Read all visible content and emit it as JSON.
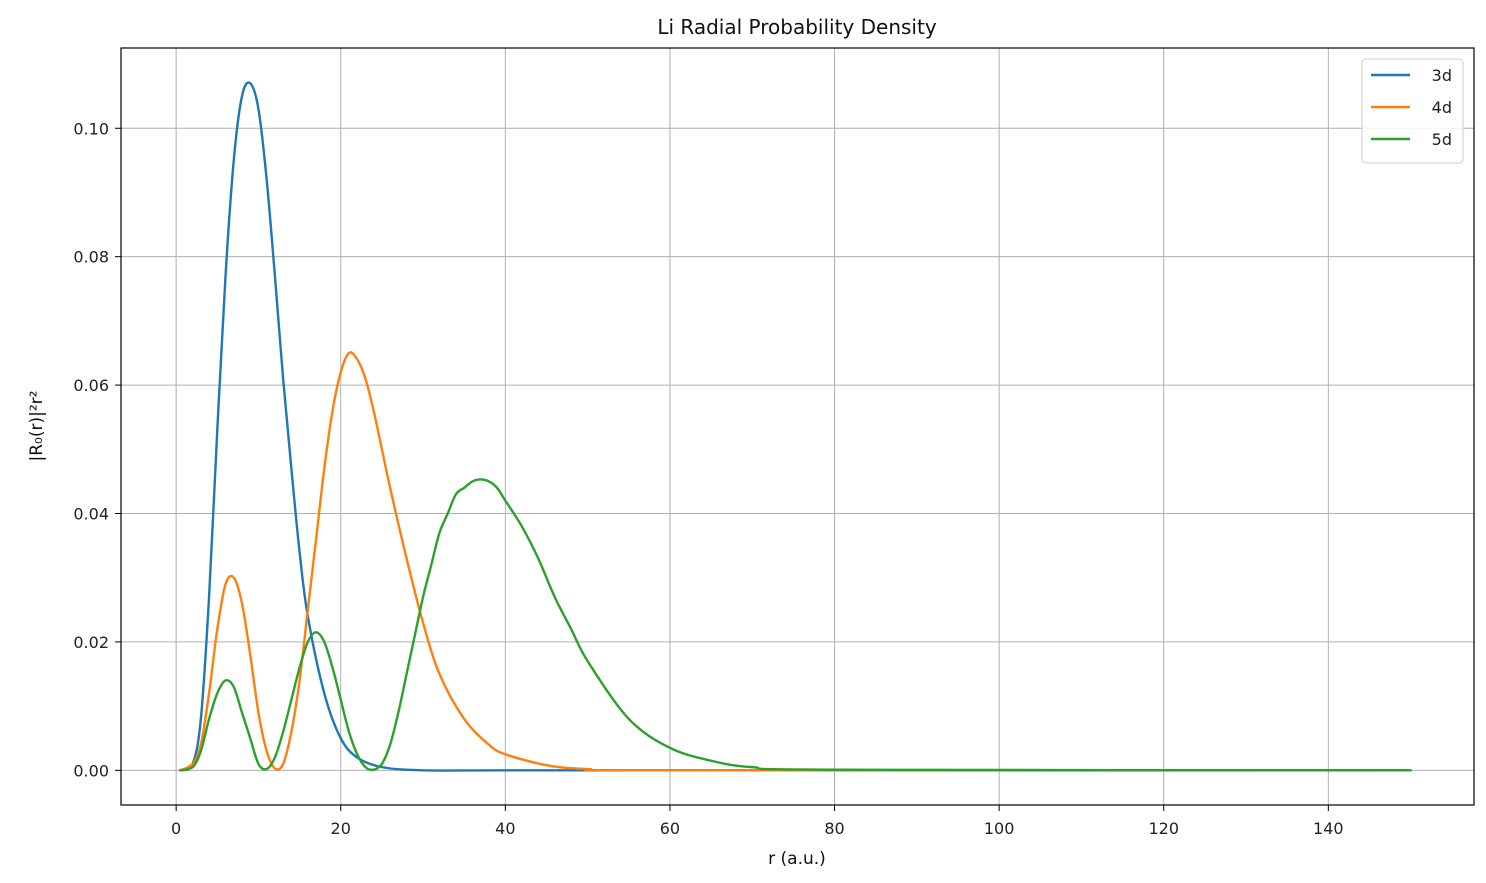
{
  "chart_data": {
    "type": "line",
    "title": "Li Radial Probability Density",
    "xlabel": "r (a.u.)",
    "ylabel": "|R₀(r)|²r²",
    "xlim": [
      -6.7,
      157.7
    ],
    "ylim": [
      -0.0054,
      0.1125
    ],
    "x_ticks": [
      0,
      20,
      40,
      60,
      80,
      100,
      120,
      140
    ],
    "x_tick_labels": [
      "0",
      "20",
      "40",
      "60",
      "80",
      "100",
      "120",
      "140"
    ],
    "y_ticks": [
      0.0,
      0.02,
      0.04,
      0.06,
      0.08,
      0.1
    ],
    "y_tick_labels": [
      "0.00",
      "0.02",
      "0.04",
      "0.06",
      "0.08",
      "0.10"
    ],
    "grid": true,
    "legend_position": "top-right",
    "series": [
      {
        "name": "3d",
        "color": "#1f77b4",
        "x": [
          0.5,
          2,
          3,
          4,
          5,
          6,
          7,
          8,
          9,
          10,
          11,
          12,
          13,
          14,
          15,
          16,
          18,
          20,
          22,
          25,
          30,
          40,
          60,
          150
        ],
        "y": [
          0.0,
          0.001,
          0.008,
          0.027,
          0.053,
          0.077,
          0.095,
          0.105,
          0.107,
          0.103,
          0.092,
          0.077,
          0.061,
          0.047,
          0.034,
          0.024,
          0.012,
          0.005,
          0.002,
          0.0005,
          0.0,
          0.0,
          0.0,
          0.0
        ]
      },
      {
        "name": "4d",
        "color": "#ff7f0e",
        "x": [
          0.5,
          2,
          3,
          4,
          5,
          6,
          7,
          8,
          9,
          10,
          11,
          12,
          13,
          14,
          15,
          16,
          17,
          18,
          19,
          20,
          21,
          22,
          23,
          24,
          25,
          26,
          28,
          30,
          32,
          35,
          38,
          40,
          45,
          50,
          60,
          150
        ],
        "y": [
          0.0,
          0.001,
          0.004,
          0.012,
          0.022,
          0.029,
          0.03,
          0.026,
          0.018,
          0.009,
          0.003,
          0.0003,
          0.001,
          0.006,
          0.014,
          0.025,
          0.036,
          0.047,
          0.056,
          0.062,
          0.065,
          0.064,
          0.061,
          0.056,
          0.05,
          0.044,
          0.033,
          0.023,
          0.015,
          0.008,
          0.004,
          0.0025,
          0.0008,
          0.0002,
          0.0,
          0.0
        ]
      },
      {
        "name": "5d",
        "color": "#2ca02c",
        "x": [
          0.5,
          2,
          3,
          4,
          5,
          6,
          7,
          8,
          9,
          10,
          11,
          12,
          13,
          14,
          15,
          16,
          17,
          18,
          19,
          20,
          21,
          22,
          23,
          24,
          25,
          26,
          27,
          28,
          29,
          30,
          31,
          32,
          33,
          34,
          35,
          36,
          37,
          38,
          39,
          40,
          42,
          44,
          46,
          48,
          50,
          55,
          60,
          65,
          70,
          80,
          150
        ],
        "y": [
          0.0,
          0.0005,
          0.003,
          0.008,
          0.012,
          0.014,
          0.013,
          0.009,
          0.005,
          0.001,
          0.0002,
          0.002,
          0.006,
          0.011,
          0.016,
          0.02,
          0.0215,
          0.02,
          0.016,
          0.011,
          0.006,
          0.0025,
          0.0005,
          0.0001,
          0.001,
          0.004,
          0.009,
          0.015,
          0.021,
          0.027,
          0.032,
          0.037,
          0.04,
          0.043,
          0.044,
          0.045,
          0.0453,
          0.045,
          0.044,
          0.042,
          0.038,
          0.033,
          0.027,
          0.022,
          0.017,
          0.008,
          0.0035,
          0.0015,
          0.0005,
          0.0001,
          0.0
        ]
      }
    ]
  }
}
